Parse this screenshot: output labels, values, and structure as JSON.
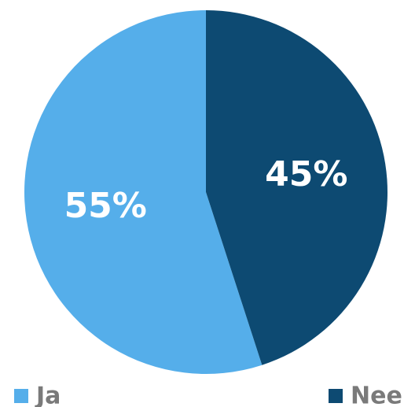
{
  "chart_data": {
    "type": "pie",
    "categories": [
      "Ja",
      "Nee"
    ],
    "values": [
      55,
      45
    ],
    "value_labels": [
      "55%",
      "45%"
    ],
    "colors": [
      "#55aeea",
      "#0d4a72"
    ]
  }
}
